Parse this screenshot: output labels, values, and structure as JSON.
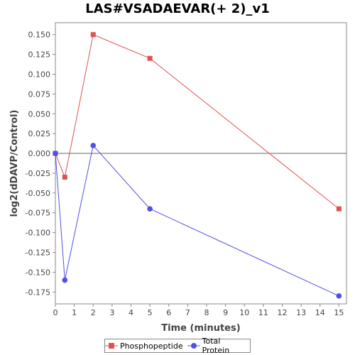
{
  "chart_data": {
    "type": "line",
    "title": "LAS#VSADAEVAR(+ 2)_v1",
    "xlabel": "Time (minutes)",
    "ylabel": "log2(dDAVP/Control)",
    "x_ticks": [
      0,
      1,
      2,
      3,
      4,
      5,
      6,
      7,
      8,
      9,
      10,
      11,
      12,
      13,
      14,
      15
    ],
    "xlim": [
      0,
      15.4
    ],
    "y_ticks": [
      0.15,
      0.125,
      0.1,
      0.075,
      0.05,
      0.025,
      0.0,
      -0.025,
      -0.05,
      -0.075,
      -0.1,
      -0.125,
      -0.15,
      -0.175
    ],
    "y_tick_labels": [
      "0.150",
      "0.125",
      "0.100",
      "0.075",
      "0.050",
      "0.025",
      "0.000",
      "-0.025",
      "-0.050",
      "-0.075",
      "-0.100",
      "-0.125",
      "-0.150",
      "-0.175"
    ],
    "ylim": [
      -0.19,
      0.165
    ],
    "zero_line": true,
    "legend_position": "bottom",
    "series": [
      {
        "name": "Phosphopeptide",
        "color": "#e05252",
        "marker": "square",
        "x": [
          0,
          0.5,
          2,
          5,
          15
        ],
        "y": [
          0.0,
          -0.03,
          0.15,
          0.12,
          -0.07
        ]
      },
      {
        "name": "Total Protein",
        "color": "#5050e6",
        "marker": "circle",
        "x": [
          0,
          0.5,
          2,
          5,
          15
        ],
        "y": [
          0.0,
          -0.16,
          0.01,
          -0.07,
          -0.18
        ]
      }
    ]
  }
}
